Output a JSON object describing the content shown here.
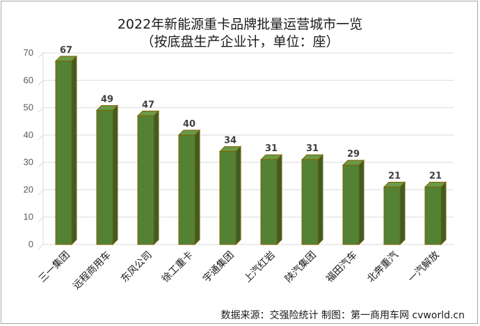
{
  "chart_data": {
    "type": "bar",
    "title": "2022年新能源重卡品牌批量运营城市一览",
    "subtitle": "（按底盘生产企业计，单位：座）",
    "categories": [
      "三一集团",
      "远程商用车",
      "东风公司",
      "徐工重卡",
      "宇通集团",
      "上汽红岩",
      "陕汽集团",
      "福田汽车",
      "北奔重汽",
      "一汽解放"
    ],
    "values": [
      67,
      49,
      47,
      40,
      34,
      31,
      31,
      29,
      21,
      21
    ],
    "ylim": [
      0,
      70
    ],
    "yticks": [
      0,
      10,
      20,
      30,
      40,
      50,
      60,
      70
    ],
    "grid": true,
    "bar_color": "#548235",
    "source": "数据来源：交强险统计 制图：第一商用车网 cvworld.cn"
  }
}
